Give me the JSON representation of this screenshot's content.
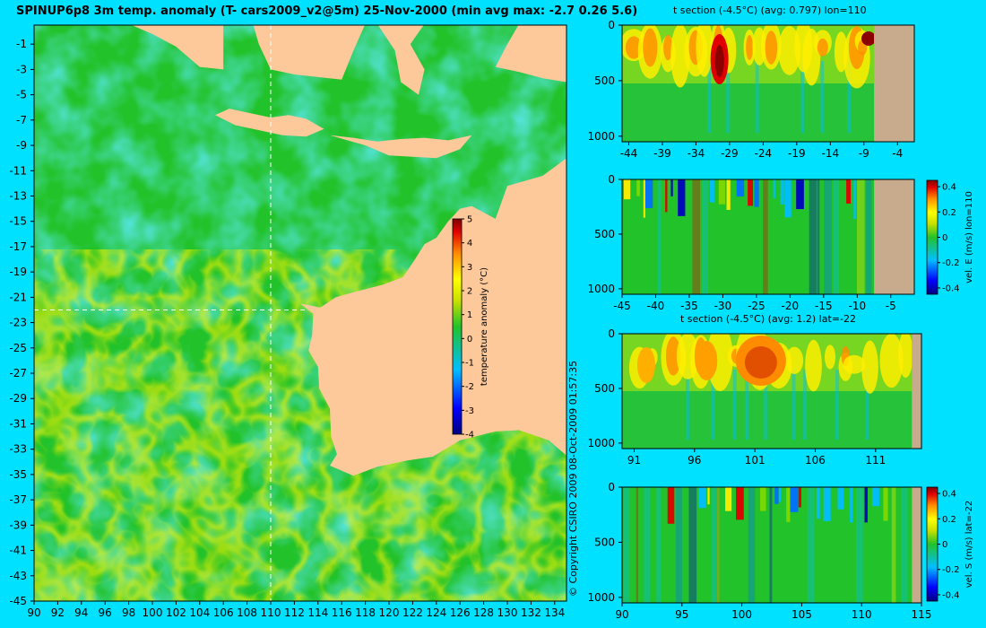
{
  "colors": {
    "background": "#00e0ff",
    "land": "#fdc89a",
    "land_section": "#c8aa8c",
    "ocean_base": "#22c22a"
  },
  "main": {
    "title": "SPINUP6p8 3m temp. anomaly (T- cars2009_v2@5m) 25-Nov-2000 (min avg max: -2.7 0.26 5.6)",
    "copyright": "© Copyright CSIRO 2009   08-Oct-2009 01:57:35"
  },
  "chart_data": [
    {
      "id": "main_map",
      "type": "heatmap",
      "title": "SPINUP6p8 3m temp. anomaly (T- cars2009_v2@5m) 25-Nov-2000 (min avg max: -2.7 0.26 5.6)",
      "x_ticks": [
        90,
        92,
        94,
        96,
        98,
        100,
        102,
        104,
        106,
        108,
        110,
        112,
        114,
        116,
        118,
        120,
        122,
        124,
        126,
        128,
        130,
        132,
        134
      ],
      "y_ticks": [
        -1,
        -3,
        -5,
        -7,
        -9,
        -11,
        -13,
        -15,
        -17,
        -19,
        -21,
        -23,
        -25,
        -27,
        -29,
        -31,
        -33,
        -35,
        -37,
        -39,
        -41,
        -43,
        -45
      ],
      "xlim": [
        90,
        135
      ],
      "ylim": [
        -45,
        0.5
      ],
      "section_lon": 110,
      "section_lat": -22,
      "colorbar": {
        "label": "temperature anomaly (°C)",
        "ticks": [
          5,
          4,
          3,
          2,
          1,
          0,
          -1,
          -2,
          -3,
          -4
        ],
        "range": [
          -4,
          5
        ]
      }
    },
    {
      "id": "section_t_lon110",
      "type": "heatmap",
      "title": "t section (-4.5°C) (avg: 0.797) lon=110",
      "x_ticks": [
        -44,
        -39,
        -34,
        -29,
        -24,
        -19,
        -14,
        -9,
        -4
      ],
      "y_ticks": [
        0,
        500,
        1000
      ],
      "xlim": [
        -45,
        -1.5
      ],
      "ylim": [
        1050,
        0
      ],
      "land_from": -7.5
    },
    {
      "id": "section_u_lon110",
      "type": "heatmap",
      "title": "",
      "x_ticks": [
        -45,
        -40,
        -35,
        -30,
        -25,
        -20,
        -15,
        -10,
        -5
      ],
      "y_ticks": [
        0,
        500,
        1000
      ],
      "xlim": [
        -45,
        -1.5
      ],
      "ylim": [
        1050,
        0
      ],
      "land_from": -7.5,
      "colorbar": {
        "label": "vel. E (m/s) lon=110",
        "ticks": [
          "0.4",
          "0.2",
          "0",
          "-0.2",
          "-0.4"
        ],
        "range": [
          -0.45,
          0.45
        ]
      }
    },
    {
      "id": "section_t_lat22",
      "type": "heatmap",
      "title": "t section (-4.5°C) (avg: 1.2) lat=-22",
      "x_ticks": [
        91,
        96,
        101,
        106,
        111
      ],
      "y_ticks": [
        0,
        500,
        1000
      ],
      "xlim": [
        90,
        114.8
      ],
      "ylim": [
        1050,
        0
      ],
      "land_from": 114
    },
    {
      "id": "section_v_lat22",
      "type": "heatmap",
      "title": "",
      "x_ticks": [
        90,
        95,
        100,
        105,
        110,
        115
      ],
      "y_ticks": [
        0,
        500,
        1000
      ],
      "xlim": [
        90,
        115
      ],
      "ylim": [
        1050,
        0
      ],
      "land_from": 114.2,
      "colorbar": {
        "label": "vel. S (m/s) lat=-22",
        "ticks": [
          "0.4",
          "0.2",
          "0",
          "-0.2",
          "-0.4"
        ],
        "range": [
          -0.45,
          0.45
        ]
      }
    }
  ]
}
